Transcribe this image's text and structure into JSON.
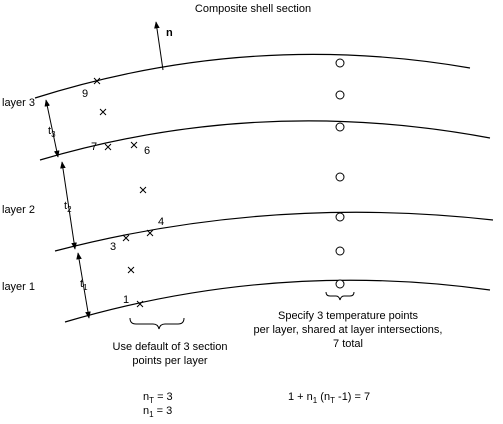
{
  "title": "Composite shell section",
  "normal_label": "n",
  "layers": [
    "layer 3",
    "layer 2",
    "layer 1"
  ],
  "thicknesses": [
    {
      "base": "t",
      "sub": "3"
    },
    {
      "base": "t",
      "sub": "2"
    },
    {
      "base": "t",
      "sub": "1"
    }
  ],
  "point_labels": [
    "9",
    "7",
    "6",
    "4",
    "3",
    "1"
  ],
  "temperature_note": [
    "Specify 3 temperature points",
    "per layer, shared at layer intersections,",
    "7 total"
  ],
  "section_note": [
    "Use default of 3 section",
    "points per layer"
  ],
  "formulas": {
    "n_t": {
      "base": "n",
      "sub": "T",
      "rest": " = 3"
    },
    "n_1": {
      "base": "n",
      "sub": "1",
      "rest": " = 3"
    },
    "total": {
      "a": "1 + n",
      "sub1": "1",
      "b": " (n",
      "sub2": "T",
      "c": " -1) = 7"
    }
  }
}
